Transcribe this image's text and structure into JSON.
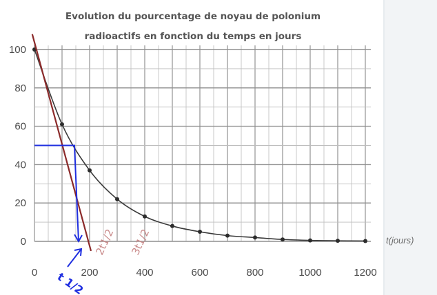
{
  "chart_data": {
    "type": "line",
    "title_lines": [
      "Evolution du pourcentage de noyau de polonium",
      "radioactifs en fonction du temps en jours"
    ],
    "xlabel": "t(jours)",
    "ylabel": "",
    "xlim": [
      0,
      1200
    ],
    "ylim": [
      0,
      100
    ],
    "x_ticks": [
      "0",
      "200",
      "400",
      "600",
      "800",
      "1000",
      "1200"
    ],
    "y_ticks": [
      "0",
      "20",
      "40",
      "60",
      "80",
      "100"
    ],
    "grid": true,
    "series": [
      {
        "points": [
          {
            "x": 0,
            "y": 100
          },
          {
            "x": 100,
            "y": 61
          },
          {
            "x": 200,
            "y": 37
          },
          {
            "x": 300,
            "y": 22
          },
          {
            "x": 400,
            "y": 13
          },
          {
            "x": 500,
            "y": 8
          },
          {
            "x": 600,
            "y": 5
          },
          {
            "x": 700,
            "y": 3
          },
          {
            "x": 800,
            "y": 2
          },
          {
            "x": 900,
            "y": 1
          },
          {
            "x": 1000,
            "y": 0.5
          },
          {
            "x": 1100,
            "y": 0.3
          },
          {
            "x": 1200,
            "y": 0.2
          }
        ],
        "color": "#3a3a3a"
      }
    ],
    "tangent_line": {
      "x1": -8,
      "y1": 108,
      "x2": 205,
      "y2": -5,
      "color": "#8b2a2a"
    },
    "annotations": {
      "half_life_label": "t 1/2",
      "red_marks": [
        "2t1/2",
        "3t1/2"
      ],
      "pen_color": "#1f2fe0",
      "half_value": 50
    }
  }
}
